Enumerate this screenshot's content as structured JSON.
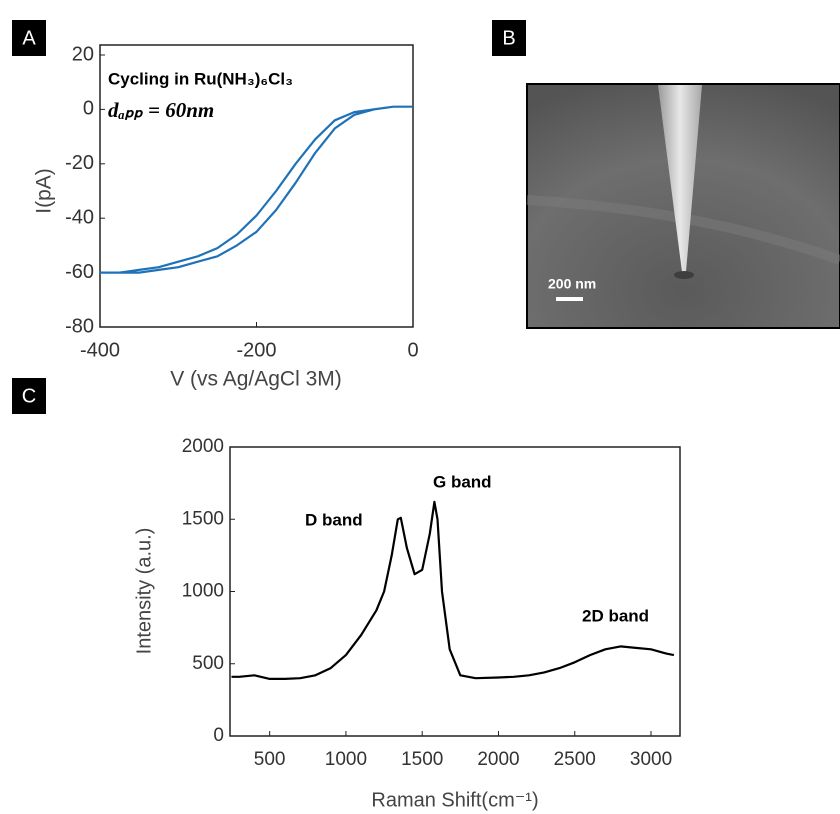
{
  "chart_data": [
    {
      "type": "line",
      "label": "A",
      "annotations": [
        "Cycling in Ru(NH₃)₆Cl₃",
        "dₐₚₚ = 60nm"
      ],
      "xlabel": "V (vs Ag/AgCl 3M)",
      "ylabel": "I(pA)",
      "x": [
        0,
        -25,
        -50,
        -75,
        -100,
        -125,
        -150,
        -175,
        -200,
        -225,
        -250,
        -275,
        -300,
        -325,
        -350,
        -375,
        -400,
        -375,
        -350,
        -325,
        -300,
        -275,
        -250,
        -225,
        -200,
        -175,
        -150,
        -125,
        -100,
        -75,
        -50,
        -25,
        0
      ],
      "values": [
        1,
        1,
        0,
        -2,
        -7,
        -16,
        -27,
        -37,
        -45,
        -50,
        -54,
        -56,
        -58,
        -59,
        -60,
        -60,
        -60,
        -60,
        -59,
        -58,
        -56,
        -54,
        -51,
        -46,
        -39,
        -30,
        -20,
        -11,
        -4,
        -1,
        0,
        1,
        1
      ],
      "color": "#1f72b8",
      "xlim": [
        -400,
        0
      ],
      "xticks": [
        -400,
        -200,
        0
      ],
      "ylim": [
        -80,
        20
      ],
      "yticks": [
        -80,
        -60,
        -40,
        -20,
        0,
        20
      ]
    },
    {
      "type": "line",
      "label": "C",
      "annotations": [
        "D band",
        "G band",
        "2D band"
      ],
      "xlabel": "Raman Shift(cm⁻¹)",
      "ylabel": "Intensity (a.u.)",
      "x": [
        250,
        300,
        400,
        500,
        600,
        700,
        800,
        900,
        1000,
        1100,
        1200,
        1250,
        1300,
        1340,
        1360,
        1400,
        1450,
        1500,
        1550,
        1580,
        1600,
        1630,
        1680,
        1750,
        1850,
        2000,
        2100,
        2200,
        2300,
        2400,
        2500,
        2600,
        2700,
        2800,
        2900,
        3000,
        3100,
        3150
      ],
      "values": [
        410,
        410,
        420,
        395,
        395,
        400,
        420,
        470,
        560,
        700,
        870,
        1000,
        1250,
        1500,
        1510,
        1300,
        1120,
        1150,
        1400,
        1620,
        1500,
        1000,
        600,
        420,
        400,
        405,
        410,
        420,
        440,
        470,
        510,
        560,
        600,
        620,
        610,
        600,
        570,
        560
      ],
      "color": "#000000",
      "xlim": [
        240,
        3190
      ],
      "xticks": [
        500,
        1000,
        1500,
        2000,
        2500,
        3000
      ],
      "ylim": [
        0,
        2000
      ],
      "yticks": [
        0,
        500,
        1000,
        1500,
        2000
      ]
    }
  ],
  "image_panel": {
    "label": "B",
    "scale_bar": "200 nm"
  }
}
